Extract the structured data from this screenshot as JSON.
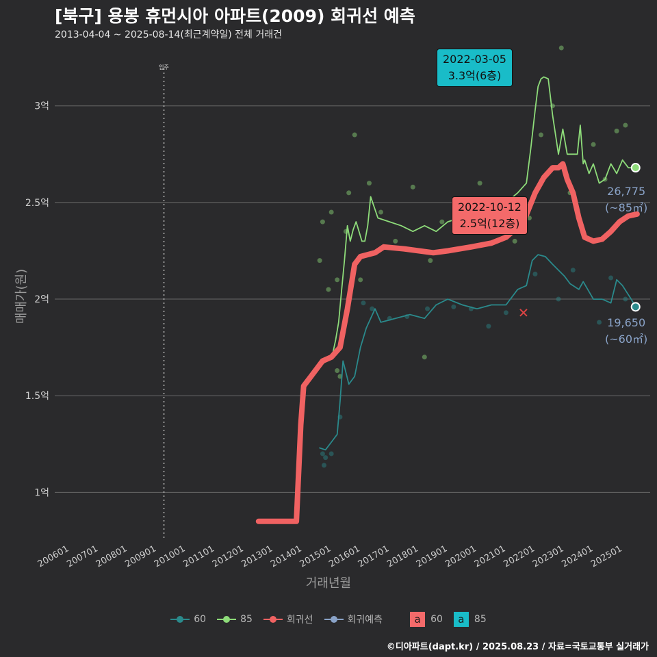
{
  "header": {
    "title": "[북구] 용봉 휴먼시아 아파트(2009) 회귀선 예측",
    "subtitle": "2013-04-04 ~ 2025-08-14(최근계약일) 전체 거래건"
  },
  "axis_labels": {
    "y": "매매가(원)",
    "x": "거래년월"
  },
  "footer": "©디아파트(dapt.kr) / 2025.08.23 / 자료=국토교통부 실거래가",
  "colors": {
    "c60": "#2a8a8c",
    "c85": "#8edc7a",
    "reg": "#f06262",
    "pred": "#8aa3c8",
    "grid": "#6a6a6a",
    "ann60": "#f46a6a",
    "ann85": "#19bcc8"
  },
  "annotations": {
    "peak85": {
      "date": "2022-03-05",
      "value": "3.3억(6층)"
    },
    "reg": {
      "date": "2022-10-12",
      "value": "2.5억(12층)"
    }
  },
  "end_labels": {
    "e85": {
      "value": "26,775",
      "area": "(~85㎡)"
    },
    "e60": {
      "value": "19,650",
      "area": "(~60㎡)"
    }
  },
  "legend": {
    "items": [
      "60",
      "85",
      "회귀선",
      "회귀예측"
    ],
    "box60_text": "a",
    "box60_label": "60",
    "box85_text": "a",
    "box85_label": "85"
  },
  "chart_data": {
    "type": "line",
    "title": "[북구] 용봉 휴먼시아 아파트(2009) 회귀선 예측",
    "xlabel": "거래년월",
    "ylabel": "매매가(원)",
    "x_ticks": [
      "200601",
      "200701",
      "200801",
      "200901",
      "201001",
      "201101",
      "201201",
      "201301",
      "201401",
      "201501",
      "201601",
      "201701",
      "201801",
      "201901",
      "202001",
      "202101",
      "202201",
      "202301",
      "202401",
      "202501"
    ],
    "x_range": [
      2005.5,
      2025.95
    ],
    "y_ticks": [
      1,
      1.5,
      2,
      2.5,
      3
    ],
    "y_tick_labels": [
      "1억",
      "1.5억",
      "2억",
      "2.5억",
      "3억"
    ],
    "ylim": [
      0.75,
      3.3
    ],
    "move_in_year": 2009.25,
    "move_in_label": "입주",
    "series": [
      {
        "name": "85",
        "x": [
          2014.75,
          2014.95,
          2015.05,
          2015.15,
          2015.25,
          2015.35,
          2015.45,
          2015.55,
          2015.65,
          2015.75,
          2015.85,
          2015.95,
          2016.05,
          2016.15,
          2016.25,
          2016.35,
          2016.6,
          2017.0,
          2017.4,
          2017.8,
          2018.2,
          2018.6,
          2019.0,
          2019.4,
          2019.8,
          2020.2,
          2020.6,
          2021.0,
          2021.4,
          2021.7,
          2021.85,
          2022.0,
          2022.1,
          2022.2,
          2022.3,
          2022.45,
          2022.6,
          2022.8,
          2022.95,
          2023.1,
          2023.3,
          2023.45,
          2023.55,
          2023.65,
          2023.7,
          2023.85,
          2024.0,
          2024.2,
          2024.4,
          2024.6,
          2024.8,
          2025.0,
          2025.2,
          2025.45
        ],
        "y": [
          1.67,
          1.7,
          1.72,
          1.79,
          1.88,
          2.04,
          2.2,
          2.38,
          2.3,
          2.36,
          2.4,
          2.35,
          2.3,
          2.3,
          2.38,
          2.53,
          2.42,
          2.4,
          2.38,
          2.35,
          2.38,
          2.35,
          2.4,
          2.42,
          2.45,
          2.45,
          2.48,
          2.5,
          2.55,
          2.6,
          2.78,
          2.98,
          3.1,
          3.14,
          3.15,
          3.14,
          2.95,
          2.75,
          2.88,
          2.75,
          2.75,
          2.75,
          2.9,
          2.7,
          2.72,
          2.65,
          2.7,
          2.6,
          2.62,
          2.7,
          2.65,
          2.72,
          2.68,
          2.68
        ]
      },
      {
        "name": "60",
        "x": [
          2014.6,
          2014.8,
          2015.0,
          2015.2,
          2015.3,
          2015.4,
          2015.6,
          2015.8,
          2016.0,
          2016.2,
          2016.5,
          2016.7,
          2017.2,
          2017.7,
          2018.2,
          2018.6,
          2019.0,
          2019.5,
          2020.0,
          2020.5,
          2021.0,
          2021.4,
          2021.7,
          2021.9,
          2022.1,
          2022.35,
          2022.6,
          2022.8,
          2023.0,
          2023.2,
          2023.5,
          2023.65,
          2024.0,
          2024.3,
          2024.6,
          2024.8,
          2025.0,
          2025.3,
          2025.45
        ],
        "y": [
          1.23,
          1.22,
          1.26,
          1.3,
          1.47,
          1.68,
          1.56,
          1.6,
          1.75,
          1.85,
          1.95,
          1.88,
          1.9,
          1.92,
          1.9,
          1.97,
          2.0,
          1.97,
          1.95,
          1.97,
          1.97,
          2.05,
          2.07,
          2.2,
          2.23,
          2.22,
          2.18,
          2.15,
          2.12,
          2.08,
          2.05,
          2.09,
          2.0,
          2.0,
          1.98,
          2.1,
          2.07,
          2.0,
          1.96
        ]
      },
      {
        "name": "회귀선",
        "x": [
          2012.5,
          2013.8,
          2013.95,
          2014.05,
          2014.3,
          2014.7,
          2015.0,
          2015.3,
          2015.55,
          2015.8,
          2016.0,
          2016.5,
          2016.8,
          2017.5,
          2018.5,
          2019.0,
          2019.8,
          2020.5,
          2021.0,
          2021.6,
          2022.0,
          2022.3,
          2022.6,
          2022.8,
          2022.95,
          2023.1,
          2023.3,
          2023.5,
          2023.7,
          2024.0,
          2024.3,
          2024.6,
          2024.9,
          2025.2,
          2025.5
        ],
        "y": [
          0.85,
          0.85,
          1.35,
          1.55,
          1.6,
          1.68,
          1.7,
          1.75,
          1.95,
          2.18,
          2.22,
          2.24,
          2.27,
          2.26,
          2.24,
          2.25,
          2.27,
          2.29,
          2.32,
          2.4,
          2.55,
          2.63,
          2.68,
          2.68,
          2.7,
          2.62,
          2.55,
          2.42,
          2.32,
          2.3,
          2.31,
          2.35,
          2.4,
          2.43,
          2.44
        ]
      },
      {
        "name": "회귀예측",
        "x": [
          2013.2,
          2013.8
        ],
        "y": [
          0.85,
          0.85
        ]
      }
    ],
    "scatter_points": [
      [
        2014.7,
        1.2,
        "60"
      ],
      [
        2014.75,
        1.14,
        "60"
      ],
      [
        2014.8,
        1.18,
        "60"
      ],
      [
        2015.0,
        1.2,
        "60"
      ],
      [
        2015.3,
        1.39,
        "60"
      ],
      [
        2016.1,
        1.98,
        "60"
      ],
      [
        2016.4,
        1.95,
        "60"
      ],
      [
        2017.0,
        1.9,
        "60"
      ],
      [
        2017.6,
        1.91,
        "60"
      ],
      [
        2018.3,
        1.95,
        "60"
      ],
      [
        2019.2,
        1.96,
        "60"
      ],
      [
        2019.8,
        1.95,
        "60"
      ],
      [
        2020.4,
        1.86,
        "60"
      ],
      [
        2021.0,
        1.93,
        "60"
      ],
      [
        2022.0,
        2.13,
        "60"
      ],
      [
        2022.8,
        2.0,
        "60"
      ],
      [
        2023.3,
        2.15,
        "60"
      ],
      [
        2024.2,
        1.88,
        "60"
      ],
      [
        2024.6,
        2.11,
        "60"
      ],
      [
        2025.1,
        2.0,
        "60"
      ],
      [
        2014.6,
        2.2,
        "85"
      ],
      [
        2014.7,
        2.4,
        "85"
      ],
      [
        2014.9,
        2.05,
        "85"
      ],
      [
        2015.0,
        2.45,
        "85"
      ],
      [
        2015.2,
        2.1,
        "85"
      ],
      [
        2015.5,
        2.35,
        "85"
      ],
      [
        2015.6,
        2.55,
        "85"
      ],
      [
        2015.8,
        2.85,
        "85"
      ],
      [
        2016.0,
        2.1,
        "85"
      ],
      [
        2016.3,
        2.6,
        "85"
      ],
      [
        2016.7,
        2.45,
        "85"
      ],
      [
        2017.2,
        2.3,
        "85"
      ],
      [
        2017.8,
        2.58,
        "85"
      ],
      [
        2018.4,
        2.2,
        "85"
      ],
      [
        2018.8,
        2.4,
        "85"
      ],
      [
        2019.3,
        2.45,
        "85"
      ],
      [
        2019.6,
        2.35,
        "85"
      ],
      [
        2020.1,
        2.6,
        "85"
      ],
      [
        2020.6,
        2.5,
        "85"
      ],
      [
        2021.3,
        2.3,
        "85"
      ],
      [
        2021.8,
        2.42,
        "85"
      ],
      [
        2022.2,
        2.85,
        "85"
      ],
      [
        2022.6,
        3.0,
        "85"
      ],
      [
        2022.9,
        3.3,
        "85"
      ],
      [
        2023.2,
        2.55,
        "85"
      ],
      [
        2024.0,
        2.8,
        "85"
      ],
      [
        2024.4,
        2.62,
        "85"
      ],
      [
        2024.8,
        2.87,
        "85"
      ],
      [
        2025.1,
        2.9,
        "85"
      ],
      [
        2018.2,
        1.7,
        "85"
      ],
      [
        2015.2,
        1.63,
        "85"
      ],
      [
        2015.3,
        1.6,
        "85"
      ]
    ],
    "cross_marker": [
      2021.6,
      1.93
    ]
  }
}
